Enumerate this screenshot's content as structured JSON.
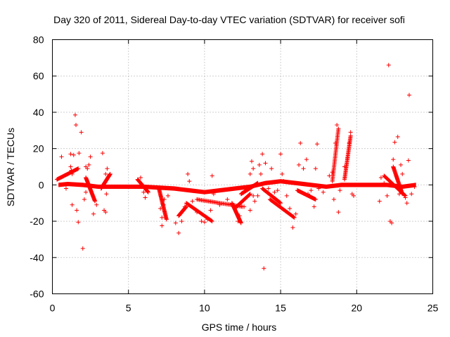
{
  "chart_data": {
    "type": "scatter",
    "title": "Day 320 of 2011, Sidereal Day-to-day VTEC variation (SDTVAR) for receiver sofi",
    "xlabel": "GPS time / hours",
    "ylabel": "SDTVAR / TECUs",
    "xlim": [
      0,
      25
    ],
    "ylim": [
      -60,
      80
    ],
    "xticks": [
      0,
      5,
      10,
      15,
      20,
      25
    ],
    "yticks": [
      -60,
      -40,
      -20,
      0,
      20,
      40,
      60,
      80
    ],
    "grid": true,
    "marker": "+",
    "color": "#ff0000",
    "series": [
      {
        "name": "SDTVAR",
        "dense_band": [
          {
            "x": 0.4,
            "y": 0
          },
          {
            "x": 1.0,
            "y": 0.5
          },
          {
            "x": 2.0,
            "y": 0
          },
          {
            "x": 3.0,
            "y": -1
          },
          {
            "x": 4.0,
            "y": -1
          },
          {
            "x": 5.0,
            "y": -1
          },
          {
            "x": 6.0,
            "y": -1
          },
          {
            "x": 7.0,
            "y": -1.5
          },
          {
            "x": 8.0,
            "y": -2
          },
          {
            "x": 9.0,
            "y": -3
          },
          {
            "x": 10.0,
            "y": -4
          },
          {
            "x": 11.0,
            "y": -3
          },
          {
            "x": 12.0,
            "y": -2
          },
          {
            "x": 13.0,
            "y": -1
          },
          {
            "x": 14.0,
            "y": 1
          },
          {
            "x": 15.0,
            "y": 2
          },
          {
            "x": 16.0,
            "y": 1
          },
          {
            "x": 17.0,
            "y": 0
          },
          {
            "x": 18.0,
            "y": -1
          },
          {
            "x": 19.0,
            "y": 0
          },
          {
            "x": 20.0,
            "y": 0
          },
          {
            "x": 21.0,
            "y": 0
          },
          {
            "x": 22.0,
            "y": 0
          },
          {
            "x": 23.0,
            "y": -1
          },
          {
            "x": 23.9,
            "y": 0
          }
        ],
        "dense_band_halfwidth": 1.2,
        "points": [
          {
            "x": 0.6,
            "y": 15.5
          },
          {
            "x": 0.9,
            "y": -2
          },
          {
            "x": 1.2,
            "y": 17
          },
          {
            "x": 1.3,
            "y": -11
          },
          {
            "x": 1.4,
            "y": 16.5
          },
          {
            "x": 1.5,
            "y": 38.5
          },
          {
            "x": 1.55,
            "y": 33
          },
          {
            "x": 1.6,
            "y": -14
          },
          {
            "x": 1.7,
            "y": -20.5
          },
          {
            "x": 1.75,
            "y": 17.5
          },
          {
            "x": 1.9,
            "y": 29
          },
          {
            "x": 2.0,
            "y": -35
          },
          {
            "x": 2.1,
            "y": -8
          },
          {
            "x": 2.2,
            "y": 10
          },
          {
            "x": 2.3,
            "y": 9
          },
          {
            "x": 2.5,
            "y": 15.5
          },
          {
            "x": 2.7,
            "y": -16
          },
          {
            "x": 2.9,
            "y": -11
          },
          {
            "x": 3.3,
            "y": 17.5
          },
          {
            "x": 3.4,
            "y": -14
          },
          {
            "x": 3.5,
            "y": -15
          },
          {
            "x": 3.6,
            "y": 9
          },
          {
            "x": 1.2,
            "y": 10
          },
          {
            "x": 1.25,
            "y": 8
          },
          {
            "x": 1.3,
            "y": 6
          },
          {
            "x": 2.2,
            "y": -4
          },
          {
            "x": 2.4,
            "y": 11
          },
          {
            "x": 3.5,
            "y": 6
          },
          {
            "x": 3.55,
            "y": -5
          },
          {
            "x": 5.8,
            "y": 4
          },
          {
            "x": 6.0,
            "y": -4
          },
          {
            "x": 6.1,
            "y": -7
          },
          {
            "x": 7.1,
            "y": -13
          },
          {
            "x": 7.2,
            "y": -18
          },
          {
            "x": 7.2,
            "y": -22.5
          },
          {
            "x": 7.3,
            "y": -11
          },
          {
            "x": 7.35,
            "y": -8
          },
          {
            "x": 7.6,
            "y": -6
          },
          {
            "x": 8.1,
            "y": -21
          },
          {
            "x": 8.3,
            "y": -26.5
          },
          {
            "x": 8.5,
            "y": -20
          },
          {
            "x": 8.7,
            "y": -12
          },
          {
            "x": 8.9,
            "y": 6
          },
          {
            "x": 9.0,
            "y": 2
          },
          {
            "x": 9.2,
            "y": -9
          },
          {
            "x": 9.5,
            "y": -15
          },
          {
            "x": 9.8,
            "y": -20
          },
          {
            "x": 10.0,
            "y": -20.5
          },
          {
            "x": 10.2,
            "y": -19
          },
          {
            "x": 10.4,
            "y": -14
          },
          {
            "x": 10.5,
            "y": 5
          },
          {
            "x": 10.6,
            "y": -5
          },
          {
            "x": 11.0,
            "y": -11
          },
          {
            "x": 11.5,
            "y": -8
          },
          {
            "x": 12.0,
            "y": -13
          },
          {
            "x": 12.2,
            "y": -20
          },
          {
            "x": 12.3,
            "y": -17
          },
          {
            "x": 12.6,
            "y": -12
          },
          {
            "x": 13.0,
            "y": -14
          },
          {
            "x": 13.2,
            "y": -6
          },
          {
            "x": 13.3,
            "y": -9
          },
          {
            "x": 13.0,
            "y": 6
          },
          {
            "x": 13.1,
            "y": 13
          },
          {
            "x": 13.2,
            "y": 9
          },
          {
            "x": 13.5,
            "y": -6
          },
          {
            "x": 13.6,
            "y": 11
          },
          {
            "x": 13.7,
            "y": 6
          },
          {
            "x": 13.8,
            "y": 17
          },
          {
            "x": 13.9,
            "y": -46
          },
          {
            "x": 14.0,
            "y": 12
          },
          {
            "x": 14.2,
            "y": -2
          },
          {
            "x": 14.4,
            "y": 9
          },
          {
            "x": 14.6,
            "y": -4
          },
          {
            "x": 14.8,
            "y": -3
          },
          {
            "x": 15.0,
            "y": 17
          },
          {
            "x": 15.1,
            "y": 6
          },
          {
            "x": 15.2,
            "y": 2
          },
          {
            "x": 15.4,
            "y": -6
          },
          {
            "x": 15.6,
            "y": -13
          },
          {
            "x": 15.8,
            "y": -23.5
          },
          {
            "x": 16.0,
            "y": -16
          },
          {
            "x": 16.2,
            "y": 11
          },
          {
            "x": 16.3,
            "y": 23
          },
          {
            "x": 16.5,
            "y": 9
          },
          {
            "x": 16.7,
            "y": 14
          },
          {
            "x": 16.8,
            "y": -5
          },
          {
            "x": 17.0,
            "y": -3
          },
          {
            "x": 17.2,
            "y": -12
          },
          {
            "x": 17.3,
            "y": 9
          },
          {
            "x": 17.4,
            "y": 22.5
          },
          {
            "x": 17.5,
            "y": -2
          },
          {
            "x": 17.8,
            "y": -4
          },
          {
            "x": 18.2,
            "y": 5
          },
          {
            "x": 18.4,
            "y": 7
          },
          {
            "x": 18.5,
            "y": -8
          },
          {
            "x": 18.6,
            "y": 23
          },
          {
            "x": 18.7,
            "y": 33
          },
          {
            "x": 18.8,
            "y": -15
          },
          {
            "x": 18.9,
            "y": -3
          },
          {
            "x": 19.2,
            "y": 10
          },
          {
            "x": 19.4,
            "y": 15
          },
          {
            "x": 19.5,
            "y": 23
          },
          {
            "x": 19.6,
            "y": 29
          },
          {
            "x": 19.7,
            "y": -5
          },
          {
            "x": 19.8,
            "y": -6
          },
          {
            "x": 21.5,
            "y": -9
          },
          {
            "x": 21.6,
            "y": 4
          },
          {
            "x": 21.8,
            "y": 1
          },
          {
            "x": 22.0,
            "y": -6
          },
          {
            "x": 22.1,
            "y": 66
          },
          {
            "x": 22.2,
            "y": -20
          },
          {
            "x": 22.3,
            "y": -21
          },
          {
            "x": 22.4,
            "y": 14
          },
          {
            "x": 22.5,
            "y": 23.5
          },
          {
            "x": 22.6,
            "y": 5
          },
          {
            "x": 22.7,
            "y": 26.5
          },
          {
            "x": 22.8,
            "y": -5
          },
          {
            "x": 22.9,
            "y": 11
          },
          {
            "x": 23.0,
            "y": 6
          },
          {
            "x": 23.2,
            "y": -7
          },
          {
            "x": 23.3,
            "y": -10
          },
          {
            "x": 23.4,
            "y": 13.5
          },
          {
            "x": 23.45,
            "y": 49.5
          },
          {
            "x": 23.6,
            "y": -5
          },
          {
            "x": 23.8,
            "y": -1
          }
        ],
        "streaks": [
          {
            "x": [
              0.3,
              1.7
            ],
            "y": [
              3,
              9
            ]
          },
          {
            "x": [
              2.2,
              2.8
            ],
            "y": [
              4,
              -9
            ]
          },
          {
            "x": [
              3.2,
              3.8
            ],
            "y": [
              -2,
              6
            ]
          },
          {
            "x": [
              5.6,
              6.3
            ],
            "y": [
              3,
              -4
            ]
          },
          {
            "x": [
              7.0,
              7.5
            ],
            "y": [
              -2,
              -19
            ]
          },
          {
            "x": [
              8.3,
              8.8
            ],
            "y": [
              -17,
              -12
            ]
          },
          {
            "x": [
              8.8,
              10.5
            ],
            "y": [
              -10,
              -20
            ]
          },
          {
            "x": [
              9.5,
              12.5
            ],
            "y": [
              -8,
              -12
            ]
          },
          {
            "x": [
              11.8,
              12.4
            ],
            "y": [
              -10,
              -21
            ]
          },
          {
            "x": [
              12.1,
              13.0
            ],
            "y": [
              -12,
              -5
            ]
          },
          {
            "x": [
              12.4,
              13.5
            ],
            "y": [
              -5,
              1
            ]
          },
          {
            "x": [
              14.3,
              15.9
            ],
            "y": [
              -8,
              -18
            ]
          },
          {
            "x": [
              13.8,
              15.0
            ],
            "y": [
              -2,
              -10
            ]
          },
          {
            "x": [
              16.1,
              17.3
            ],
            "y": [
              -3,
              -8
            ]
          },
          {
            "x": [
              18.4,
              18.8
            ],
            "y": [
              2,
              31
            ]
          },
          {
            "x": [
              19.2,
              19.6
            ],
            "y": [
              3,
              27
            ]
          },
          {
            "x": [
              21.8,
              23.2
            ],
            "y": [
              5,
              -6
            ]
          },
          {
            "x": [
              22.4,
              23.0
            ],
            "y": [
              10,
              -5
            ]
          }
        ]
      }
    ]
  }
}
